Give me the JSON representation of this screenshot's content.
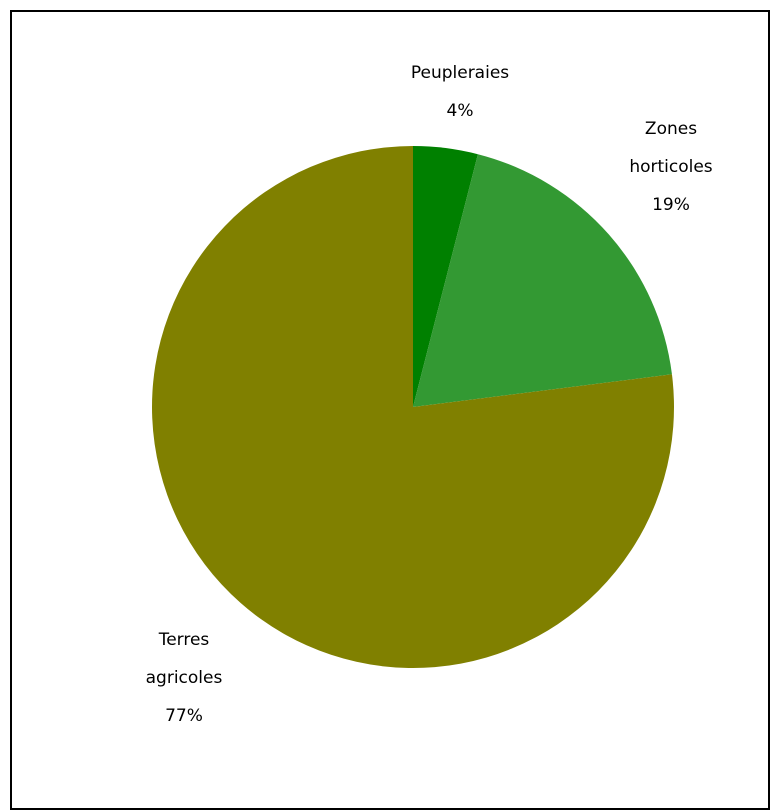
{
  "chart_data": {
    "type": "pie",
    "title": "",
    "slices": [
      {
        "label_lines": [
          "Peupleraies"
        ],
        "percent_label": "4%",
        "value": 4,
        "color": "#008000"
      },
      {
        "label_lines": [
          "Zones",
          "horticoles"
        ],
        "percent_label": "19%",
        "value": 19,
        "color": "#339933"
      },
      {
        "label_lines": [
          "Terres",
          "agricoles"
        ],
        "percent_label": "77%",
        "value": 77,
        "color": "#808000"
      }
    ],
    "start_angle": "12 o'clock",
    "direction": "clockwise",
    "legend": "none"
  }
}
